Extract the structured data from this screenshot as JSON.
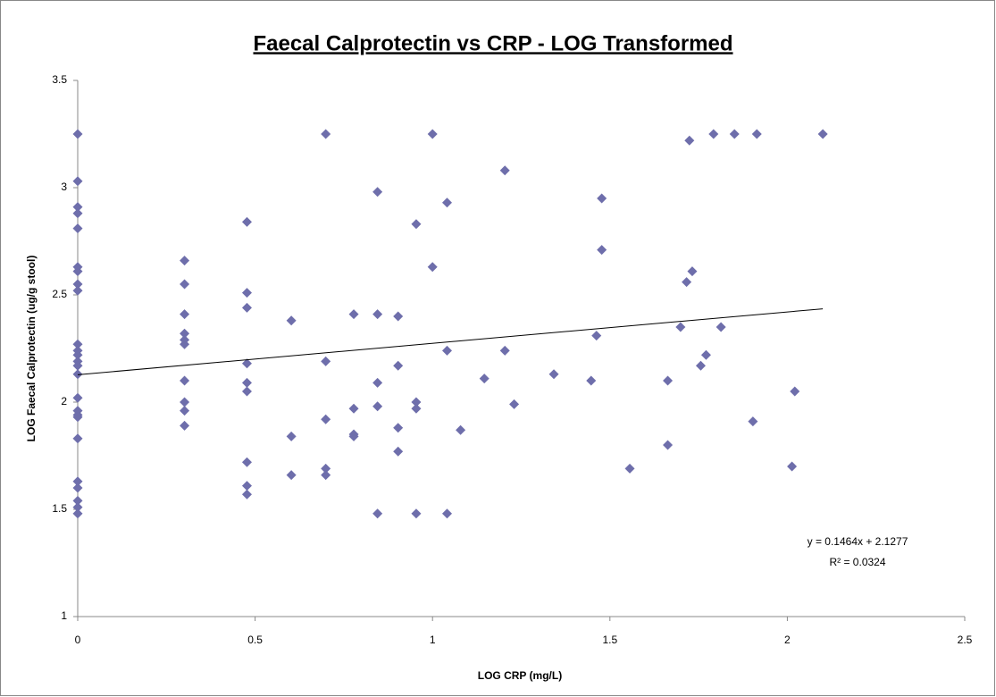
{
  "chart_data": {
    "type": "scatter",
    "title": "Faecal Calprotectin vs CRP - LOG Transformed",
    "xlabel": "LOG CRP (mg/L)",
    "ylabel": "LOG Faecal Calprotectin (ug/g stool)",
    "color": "#6e6eab",
    "xlim": [
      0,
      2.5
    ],
    "ylim": [
      1,
      3.5
    ],
    "xticks": [
      0,
      0.5,
      1,
      1.5,
      2,
      2.5
    ],
    "yticks": [
      1,
      1.5,
      2,
      2.5,
      3,
      3.5
    ],
    "x": [
      0,
      0,
      0,
      0,
      0,
      0,
      0,
      0,
      0,
      0,
      0,
      0,
      0,
      0,
      0,
      0,
      0,
      0,
      0,
      0,
      0,
      0,
      0,
      0,
      0,
      0.301,
      0.301,
      0.301,
      0.301,
      0.301,
      0.301,
      0.301,
      0.301,
      0.301,
      0.301,
      0.477,
      0.477,
      0.477,
      0.477,
      0.477,
      0.477,
      0.477,
      0.477,
      0.477,
      0.602,
      0.602,
      0.602,
      0.699,
      0.699,
      0.699,
      0.699,
      0.699,
      0.778,
      0.778,
      0.778,
      0.778,
      0.845,
      0.845,
      0.845,
      0.845,
      0.845,
      0.903,
      0.903,
      0.903,
      0.903,
      0.954,
      0.954,
      0.954,
      0.954,
      1.0,
      1.0,
      1.041,
      1.041,
      1.041,
      1.079,
      1.146,
      1.204,
      1.204,
      1.23,
      1.342,
      1.447,
      1.462,
      1.477,
      1.477,
      1.556,
      1.663,
      1.663,
      1.699,
      1.716,
      1.724,
      1.732,
      1.756,
      1.771,
      1.792,
      1.813,
      1.851,
      1.903,
      1.914,
      2.013,
      2.021,
      2.1
    ],
    "values": [
      3.25,
      3.03,
      2.91,
      2.88,
      2.81,
      2.63,
      2.61,
      2.55,
      2.52,
      2.27,
      2.24,
      2.22,
      2.19,
      2.17,
      2.13,
      2.02,
      1.96,
      1.94,
      1.93,
      1.83,
      1.63,
      1.6,
      1.54,
      1.51,
      1.48,
      2.66,
      2.55,
      2.41,
      2.32,
      2.29,
      2.27,
      2.1,
      2.0,
      1.96,
      1.89,
      2.84,
      2.51,
      2.44,
      2.18,
      2.09,
      2.05,
      1.72,
      1.61,
      1.57,
      2.38,
      1.84,
      1.66,
      3.25,
      2.19,
      1.92,
      1.69,
      1.66,
      2.41,
      1.97,
      1.85,
      1.84,
      2.98,
      2.41,
      2.09,
      1.98,
      1.48,
      2.4,
      2.17,
      1.88,
      1.77,
      2.83,
      2.0,
      1.97,
      1.48,
      3.25,
      2.63,
      2.93,
      2.24,
      1.48,
      1.87,
      2.11,
      3.08,
      2.24,
      1.99,
      2.13,
      2.1,
      2.31,
      2.95,
      2.71,
      1.69,
      2.1,
      1.8,
      2.35,
      2.56,
      3.22,
      2.61,
      2.17,
      2.22,
      3.25,
      2.35,
      3.25,
      1.91,
      3.25,
      1.7,
      2.05,
      3.25
    ],
    "trendline": {
      "label": "y = 0.1464x + 2.1277",
      "r2_label": "R² = 0.0324",
      "slope": 0.1464,
      "intercept": 2.1277,
      "x": [
        0,
        2.1
      ]
    }
  }
}
